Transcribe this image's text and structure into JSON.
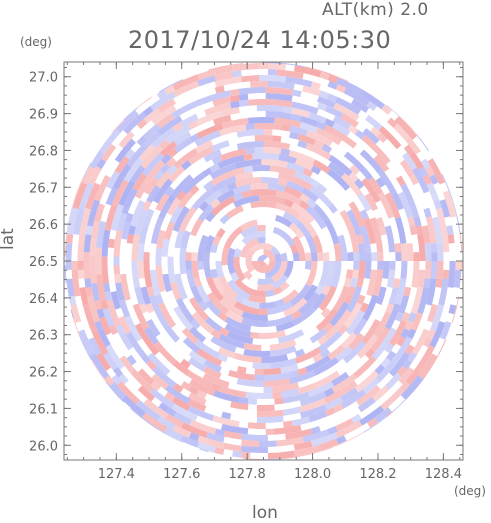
{
  "header": {
    "altitude": "ALT(km) 2.0",
    "timestamp": "2017/10/24 14:05:30"
  },
  "chart_data": {
    "type": "heatmap",
    "title": "2017/10/24 14:05:30",
    "subtitle": "ALT(km) 2.0",
    "xlabel": "lon",
    "ylabel": "lat",
    "x_unit": "(deg)",
    "y_unit": "(deg)",
    "xlim": [
      127.24,
      128.46
    ],
    "ylim": [
      25.96,
      27.04
    ],
    "x_ticks": [
      127.4,
      127.6,
      127.8,
      128.0,
      128.2,
      128.4
    ],
    "x_tick_labels": [
      "127.4",
      "127.6",
      "127.8",
      "128.0",
      "128.2",
      "128.4"
    ],
    "y_ticks": [
      26.0,
      26.1,
      26.2,
      26.3,
      26.4,
      26.5,
      26.6,
      26.7,
      26.8,
      26.9,
      27.0
    ],
    "y_tick_labels": [
      "26.0",
      "26.1",
      "26.2",
      "26.3",
      "26.4",
      "26.5",
      "26.6",
      "26.7",
      "26.8",
      "26.9",
      "27.0"
    ],
    "radar_center": [
      127.85,
      26.5
    ],
    "radar_radius_lat_deg": 0.54,
    "grid": false,
    "colors": {
      "positive": "#f6a6a6",
      "negative": "#a9aef2",
      "axis": "#666666"
    }
  }
}
